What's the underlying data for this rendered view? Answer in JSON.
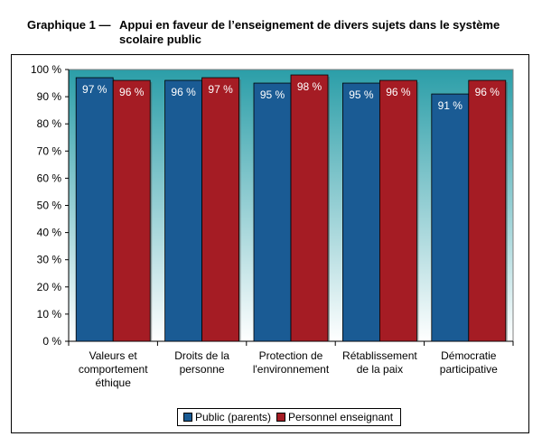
{
  "title": {
    "prefix": "Graphique 1 —",
    "text": "Appui en faveur de l’enseignement de divers sujets dans le système scolaire public"
  },
  "chart_data": {
    "type": "bar",
    "categories": [
      [
        "Valeurs et",
        "comportement",
        "éthique"
      ],
      [
        "Droits de la",
        "personne"
      ],
      [
        "Protection  de",
        "l'environnement"
      ],
      [
        "Rétablissement",
        "de la paix"
      ],
      [
        "Démocratie",
        "participative"
      ]
    ],
    "series": [
      {
        "name": "Public (parents)",
        "values": [
          97,
          96,
          95,
          95,
          91
        ],
        "labels": [
          "97 %",
          "96 %",
          "95 %",
          "95 %",
          "91 %"
        ],
        "color": "#1a5b94"
      },
      {
        "name": "Personnel enseignant",
        "values": [
          96,
          97,
          98,
          96,
          96
        ],
        "labels": [
          "96 %",
          "97 %",
          "98 %",
          "96 %",
          "96 %"
        ],
        "color": "#a51c24"
      }
    ],
    "ylim": [
      0,
      100
    ],
    "yticks": [
      0,
      10,
      20,
      30,
      40,
      50,
      60,
      70,
      80,
      90,
      100
    ],
    "ytick_labels": [
      "0 %",
      "10 %",
      "20 %",
      "30 %",
      "40 %",
      "50 %",
      "60 %",
      "70 %",
      "80 %",
      "90 %",
      "100 %"
    ],
    "grid": false,
    "legend_position": "bottom",
    "plot_background": {
      "top": "#2b9ea8",
      "bottom": "#ffffff"
    }
  }
}
